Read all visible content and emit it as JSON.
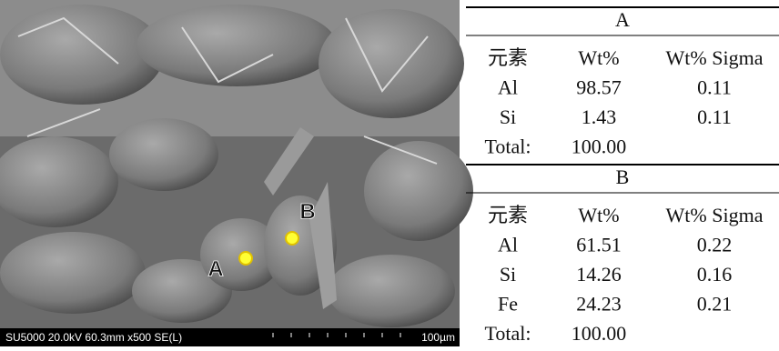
{
  "image": {
    "labels": [
      "A",
      "B"
    ],
    "info": "SU5000 20.0kV 60.3mm x500 SE(L)",
    "scale": "100µm"
  },
  "tables": [
    {
      "title": "A",
      "columns": [
        "元素",
        "Wt%",
        "Wt% Sigma"
      ],
      "rows": [
        [
          "Al",
          "98.57",
          "0.11"
        ],
        [
          "Si",
          "1.43",
          "0.11"
        ],
        [
          "Total:",
          "100.00"
        ]
      ]
    },
    {
      "title": "B",
      "columns": [
        "元素",
        "Wt%",
        "Wt% Sigma"
      ],
      "rows": [
        [
          "Al",
          "61.51",
          "0.22"
        ],
        [
          "Si",
          "14.26",
          "0.16"
        ],
        [
          "Fe",
          "24.23",
          "0.21"
        ],
        [
          "Total:",
          "100.00"
        ]
      ]
    }
  ]
}
